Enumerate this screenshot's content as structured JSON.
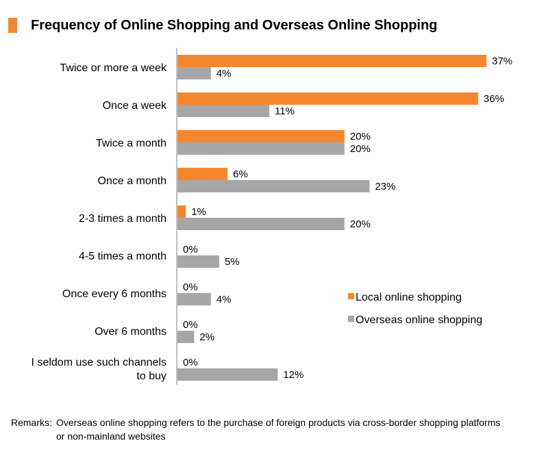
{
  "title": "Frequency of Online Shopping and Overseas Online Shopping",
  "remarks": {
    "label": "Remarks:",
    "text": "Overseas online shopping refers to the purchase of foreign products via cross-border shopping platforms or non-mainland websites"
  },
  "colors": {
    "accent": "#F5872F",
    "local": "#F5872F",
    "overseas": "#A6A6A6",
    "axis": "#7F7F7F"
  },
  "chart_data": {
    "type": "bar",
    "orientation": "horizontal",
    "categories": [
      "Twice or more a week",
      "Once a week",
      "Twice a month",
      "Once a month",
      "2-3 times a month",
      "4-5 times a month",
      "Once every 6 months",
      "Over 6 months",
      [
        "I seldom use such channels",
        "to buy"
      ]
    ],
    "series": [
      {
        "name": "Local online shopping",
        "color": "#F5872F",
        "values": [
          37,
          36,
          20,
          6,
          1,
          0,
          0,
          0,
          0
        ],
        "labels": [
          "37%",
          "36%",
          "20%",
          "6%",
          "1%",
          "0%",
          "0%",
          "0%",
          "0%"
        ]
      },
      {
        "name": "Overseas online shopping",
        "color": "#A6A6A6",
        "values": [
          4,
          11,
          20,
          23,
          20,
          5,
          4,
          2,
          12
        ],
        "labels": [
          "4%",
          "11%",
          "20%",
          "23%",
          "20%",
          "5%",
          "4%",
          "2%",
          "12%"
        ]
      }
    ],
    "xlim": [
      0,
      37
    ],
    "legend_position": "right-middle",
    "grid": false
  }
}
